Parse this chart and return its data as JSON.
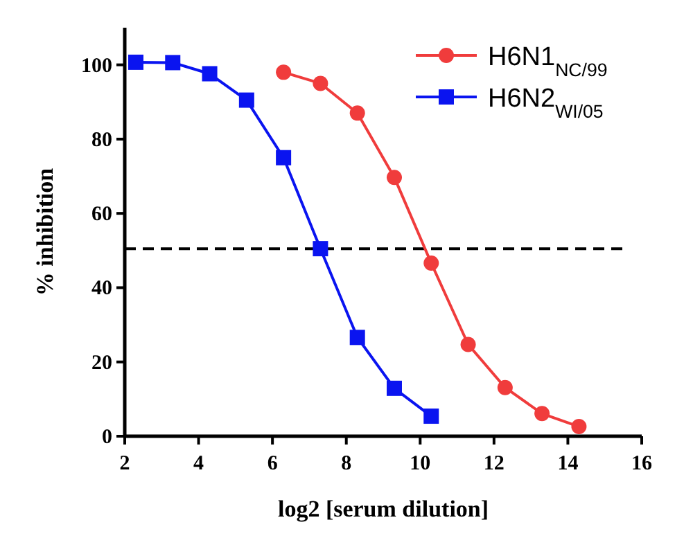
{
  "chart_data": {
    "type": "line",
    "xlabel": "log2 [serum dilution]",
    "ylabel": "% inhibition",
    "xlim": [
      2,
      16
    ],
    "ylim": [
      0,
      110
    ],
    "xticks": [
      2,
      4,
      6,
      8,
      10,
      12,
      14,
      16
    ],
    "yticks": [
      0,
      20,
      40,
      60,
      80,
      100
    ],
    "grid": false,
    "legend": "top right",
    "line_style": "solid",
    "series": [
      {
        "name": "H6N1$_{NC/99}$",
        "color": "#f03c3c",
        "marker": "circle",
        "x": [
          6.3,
          7.3,
          8.3,
          9.3,
          10.3,
          11.3,
          12.3,
          13.3,
          14.3
        ],
        "values": [
          98,
          95,
          87,
          69.7,
          46.6,
          24.7,
          13.1,
          6.1,
          2.6
        ]
      },
      {
        "name": "H6N2$_{WI/05}$",
        "color": "#0a14f0",
        "marker": "square",
        "x": [
          2.3,
          3.3,
          4.3,
          5.3,
          6.3,
          7.3,
          8.3,
          9.3,
          10.3
        ],
        "values": [
          100.7,
          100.6,
          97.6,
          90.5,
          75,
          50.5,
          26.6,
          12.9,
          5.4
        ]
      }
    ],
    "ref_lines": [
      {
        "axis": "y",
        "value": 50.5,
        "color": "#000000",
        "line_style": "dashed"
      }
    ]
  }
}
